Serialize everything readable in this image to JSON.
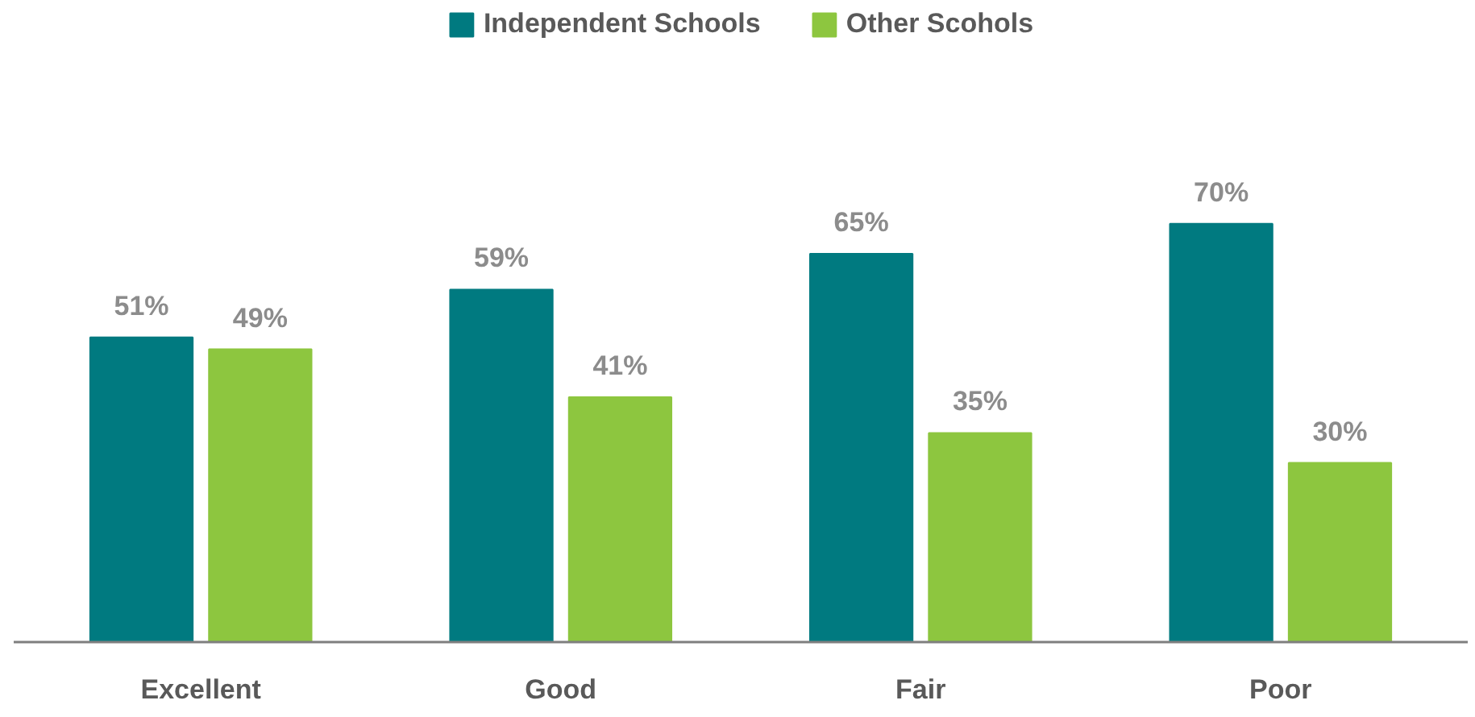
{
  "chart_data": {
    "type": "bar",
    "categories": [
      "Excellent",
      "Good",
      "Fair",
      "Poor"
    ],
    "series": [
      {
        "name": "Independent Schools",
        "color": "#007a80",
        "values": [
          51,
          59,
          65,
          70
        ],
        "value_labels": [
          "51%",
          "59%",
          "65%",
          "70%"
        ]
      },
      {
        "name": "Other Scohols",
        "color": "#8dc63f",
        "values": [
          49,
          41,
          35,
          30
        ],
        "value_labels": [
          "49%",
          "41%",
          "35%",
          "30%"
        ]
      }
    ],
    "legend": "top"
  }
}
